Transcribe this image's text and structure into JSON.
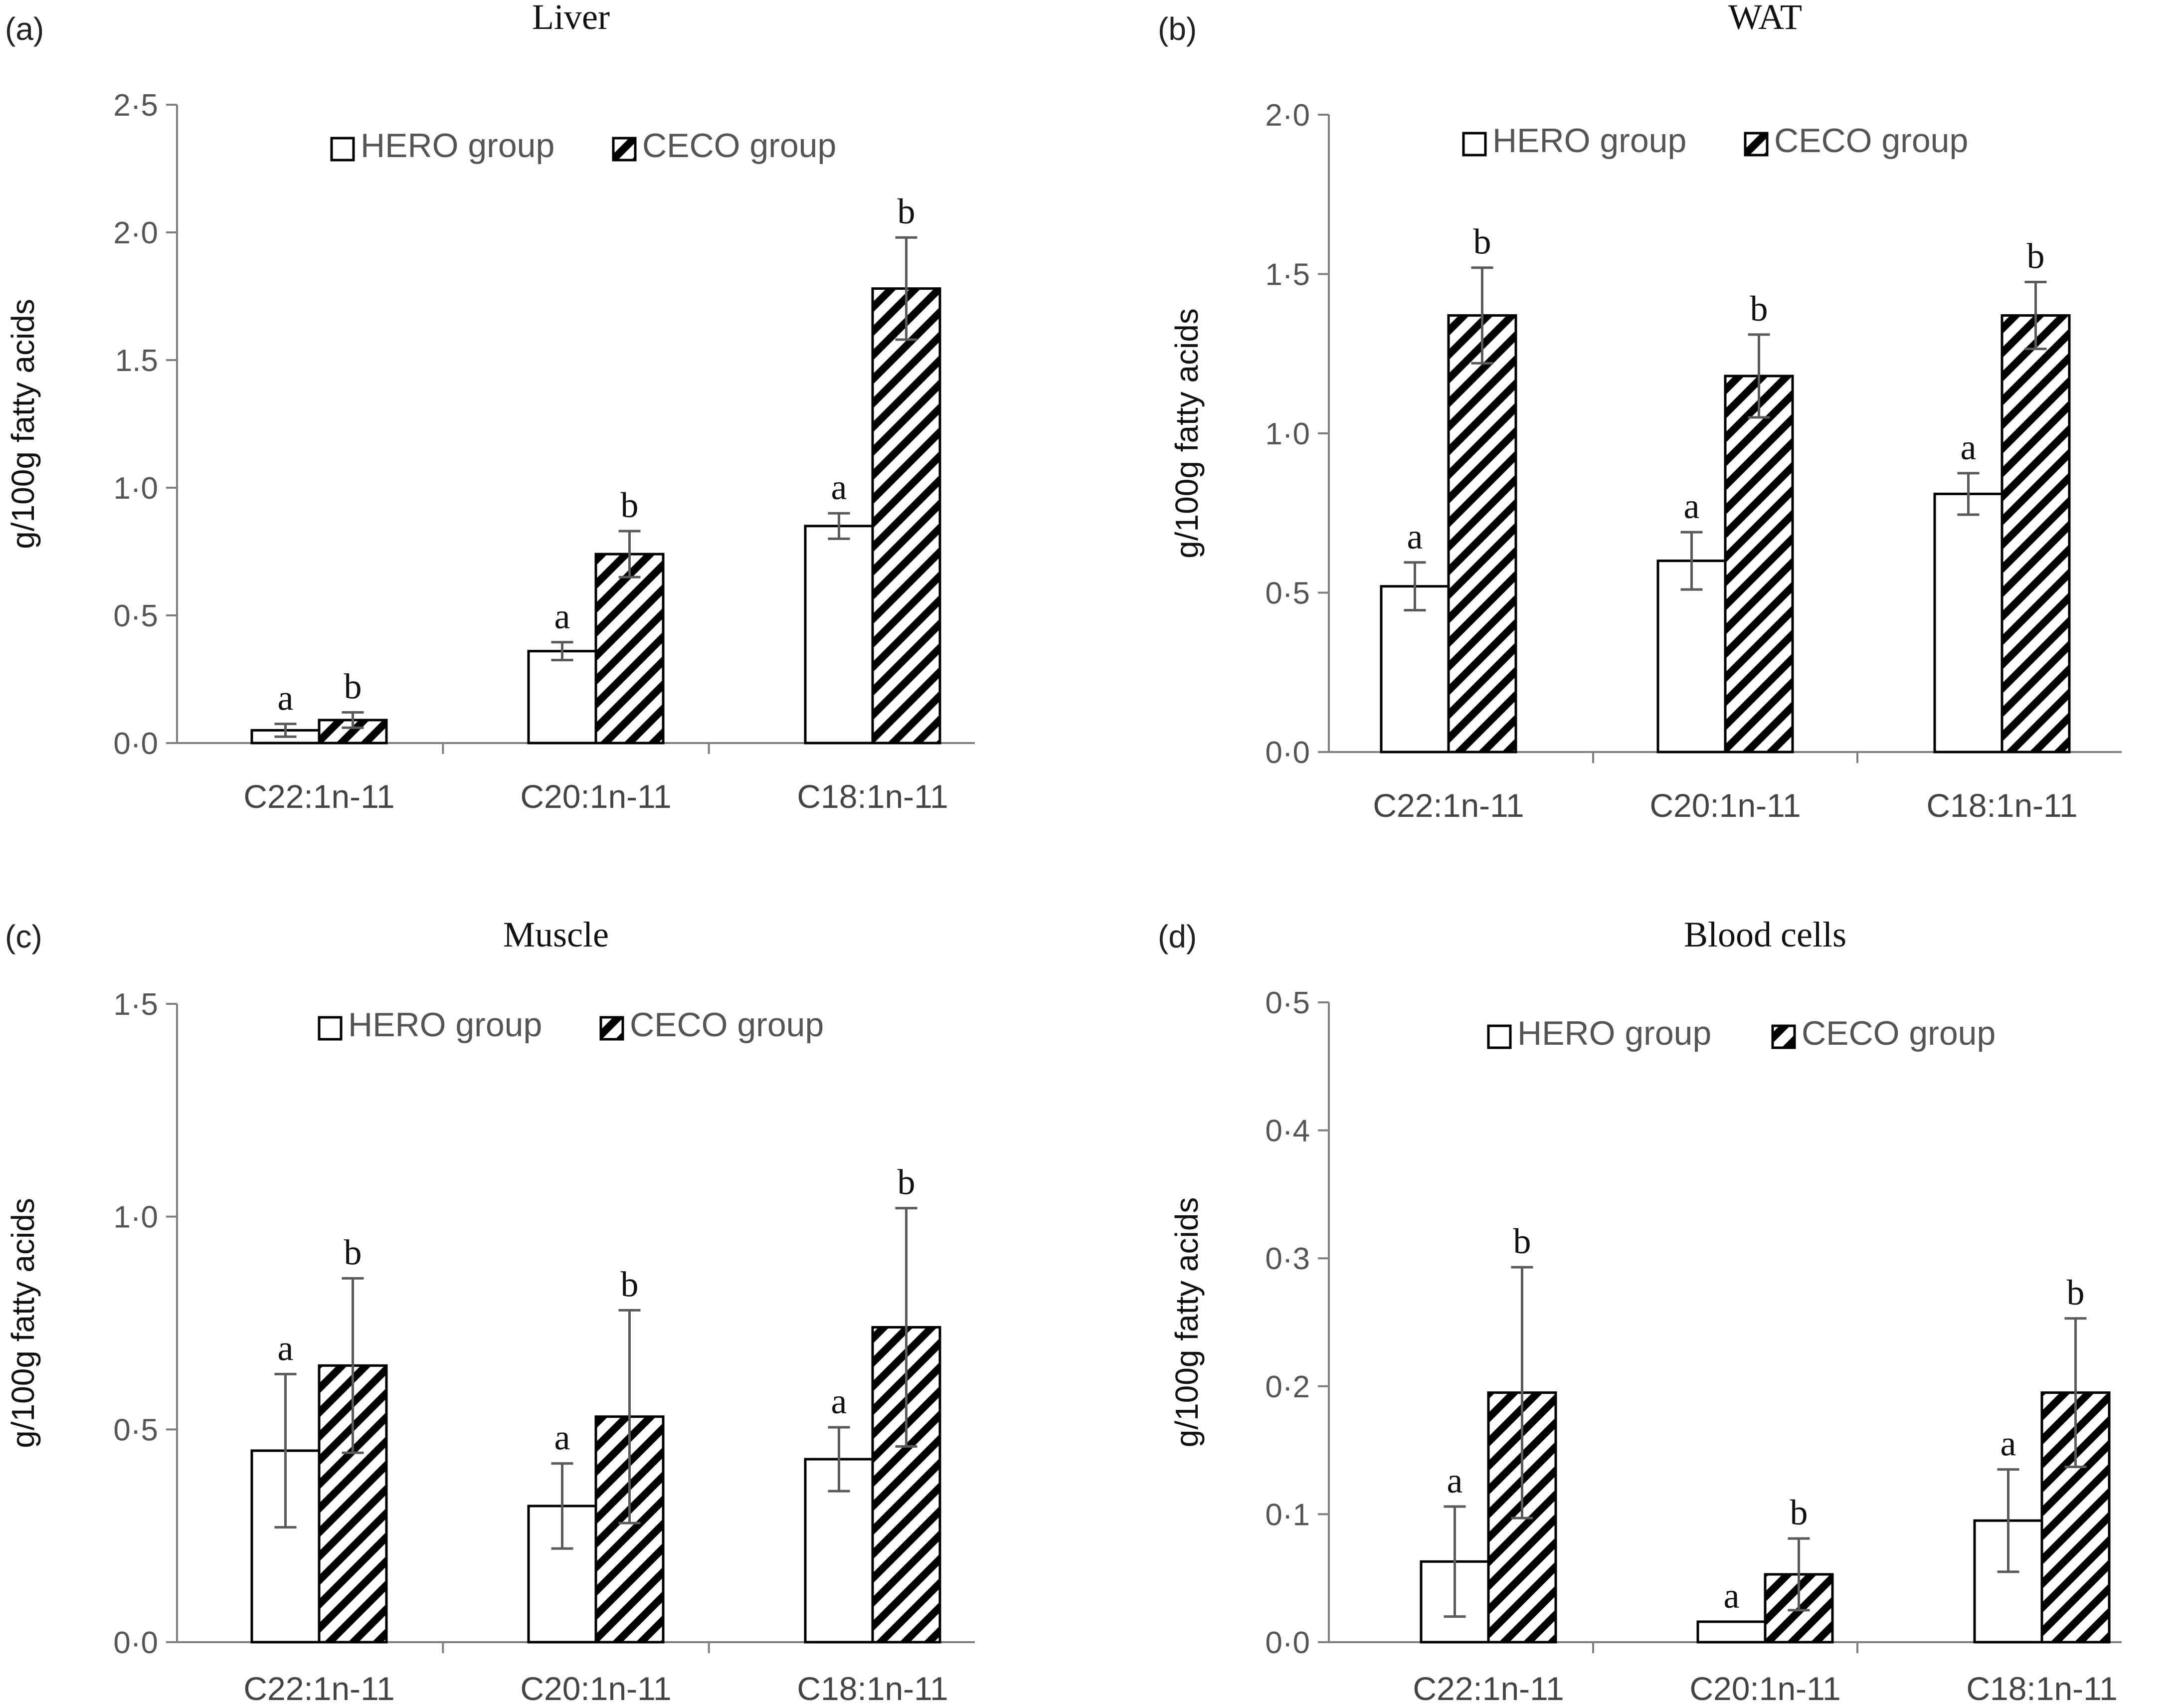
{
  "figure": {
    "legend": {
      "hero_label": "HERO group",
      "ceco_label": "CECO group"
    }
  },
  "colors": {
    "hero_fill": "#ffffff",
    "ceco_pattern": "diagonal-hatch-black",
    "bar_stroke": "#000000",
    "axis": "#7f7f7f",
    "error_bar": "#5a5a5a"
  },
  "chart_data": [
    {
      "panel": "(a)",
      "type": "bar",
      "title": "Liver",
      "ylabel": "g/100g fatty acids",
      "ylim": [
        0,
        2.5
      ],
      "yticks": [
        0,
        0.5,
        1,
        1.5,
        2,
        2.5
      ],
      "ytick_labels": [
        "0·0",
        "0·5",
        "1·0",
        "1.5",
        "2·0",
        "2·5"
      ],
      "categories": [
        "C22:1n-11",
        "C20:1n-11",
        "C18:1n-11"
      ],
      "legend_position": "top-center",
      "grid": false,
      "series": [
        {
          "name": "HERO group",
          "values": [
            0.05,
            0.36,
            0.85
          ],
          "errors": [
            0.025,
            0.035,
            0.05
          ],
          "letters": [
            "a",
            "a",
            "a"
          ]
        },
        {
          "name": "CECO group",
          "values": [
            0.09,
            0.74,
            1.78
          ],
          "errors": [
            0.03,
            0.09,
            0.2
          ],
          "letters": [
            "b",
            "b",
            "b"
          ]
        }
      ]
    },
    {
      "panel": "(b)",
      "type": "bar",
      "title": "WAT",
      "ylabel": "g/100g fatty acids",
      "ylim": [
        0,
        2
      ],
      "yticks": [
        0,
        0.5,
        1,
        1.5,
        2
      ],
      "ytick_labels": [
        "0·0",
        "0·5",
        "1·0",
        "1·5",
        "2·0"
      ],
      "categories": [
        "C22:1n-11",
        "C20:1n-11",
        "C18:1n-11"
      ],
      "legend_position": "top-center",
      "grid": false,
      "series": [
        {
          "name": "HERO group",
          "values": [
            0.52,
            0.6,
            0.81
          ],
          "errors": [
            0.075,
            0.09,
            0.065
          ],
          "letters": [
            "a",
            "a",
            "a"
          ]
        },
        {
          "name": "CECO group",
          "values": [
            1.37,
            1.18,
            1.37
          ],
          "errors": [
            0.15,
            0.13,
            0.105
          ],
          "letters": [
            "b",
            "b",
            "b"
          ]
        }
      ]
    },
    {
      "panel": "(c)",
      "type": "bar",
      "title": "Muscle",
      "ylabel": "g/100g fatty acids",
      "ylim": [
        0,
        1.5
      ],
      "yticks": [
        0,
        0.5,
        1,
        1.5
      ],
      "ytick_labels": [
        "0·0",
        "0·5",
        "1·0",
        "1·5"
      ],
      "categories": [
        "C22:1n-11",
        "C20:1n-11",
        "C18:1n-11"
      ],
      "legend_position": "top-center",
      "grid": false,
      "series": [
        {
          "name": "HERO group",
          "values": [
            0.45,
            0.32,
            0.43
          ],
          "errors": [
            0.18,
            0.1,
            0.075
          ],
          "letters": [
            "a",
            "a",
            "a"
          ]
        },
        {
          "name": "CECO group",
          "values": [
            0.65,
            0.53,
            0.74
          ],
          "errors": [
            0.205,
            0.25,
            0.28
          ],
          "letters": [
            "b",
            "b",
            "b"
          ]
        }
      ]
    },
    {
      "panel": "(d)",
      "type": "bar",
      "title": "Blood cells",
      "ylabel": "g/100g fatty acids",
      "ylim": [
        0,
        0.5
      ],
      "yticks": [
        0,
        0.1,
        0.2,
        0.3,
        0.4,
        0.5
      ],
      "ytick_labels": [
        "0·0",
        "0·1",
        "0·2",
        "0·3",
        "0·4",
        "0·5"
      ],
      "categories": [
        "C22:1n-11",
        "C20:1n-11",
        "C18:1n-11"
      ],
      "legend_position": "top-center",
      "grid": false,
      "series": [
        {
          "name": "HERO group",
          "values": [
            0.063,
            0.016,
            0.095
          ],
          "errors": [
            0.043,
            0,
            0.04
          ],
          "letters": [
            "a",
            "a",
            "a"
          ]
        },
        {
          "name": "CECO group",
          "values": [
            0.195,
            0.053,
            0.195
          ],
          "errors": [
            0.098,
            0.028,
            0.058
          ],
          "letters": [
            "b",
            "b",
            "b"
          ]
        }
      ]
    }
  ]
}
